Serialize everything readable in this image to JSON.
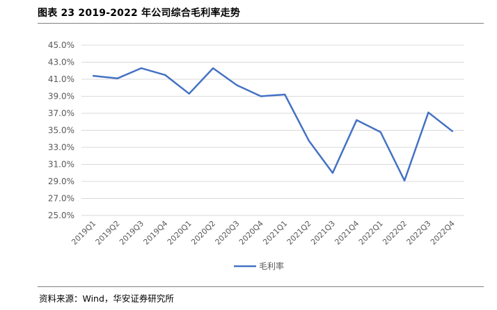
{
  "header": {
    "title": "图表 23 2019-2022 年公司综合毛利率走势"
  },
  "footer": {
    "source": "资料来源：Wind，华安证券研究所"
  },
  "colors": {
    "series": "#4472c4",
    "gridline": "#d9d9d9",
    "tick_text": "#595959"
  },
  "chart_data": {
    "type": "line",
    "title": "",
    "xlabel": "",
    "ylabel": "",
    "categories": [
      "2019Q1",
      "2019Q2",
      "2019Q3",
      "2019Q4",
      "2020Q1",
      "2020Q2",
      "2020Q3",
      "2020Q4",
      "2021Q1",
      "2021Q2",
      "2021Q3",
      "2021Q4",
      "2022Q1",
      "2022Q2",
      "2022Q3",
      "2022Q4"
    ],
    "series": [
      {
        "name": "毛利率",
        "values": [
          41.4,
          41.1,
          42.3,
          41.5,
          39.3,
          42.3,
          40.3,
          39.0,
          39.2,
          33.8,
          30.0,
          36.2,
          34.8,
          29.1,
          37.1,
          34.9
        ]
      }
    ],
    "ylim": [
      25.0,
      45.0
    ],
    "yticks": [
      25.0,
      27.0,
      29.0,
      31.0,
      33.0,
      35.0,
      37.0,
      39.0,
      41.0,
      43.0,
      45.0
    ],
    "ytick_labels": [
      "25.0%",
      "27.0%",
      "29.0%",
      "31.0%",
      "33.0%",
      "35.0%",
      "37.0%",
      "39.0%",
      "41.0%",
      "43.0%",
      "45.0%"
    ],
    "grid": true,
    "legend": "bottom-center"
  }
}
